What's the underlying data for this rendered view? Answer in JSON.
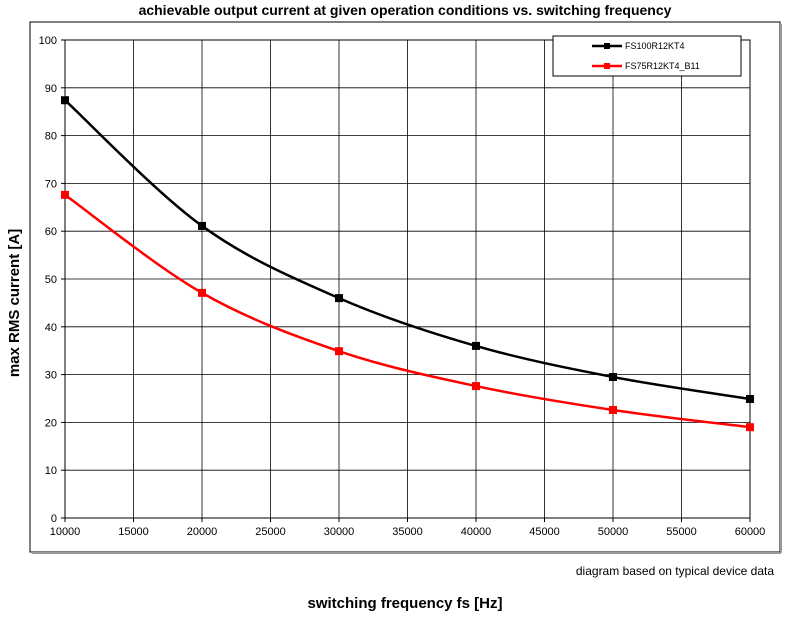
{
  "chart_data": {
    "type": "line",
    "title": "achievable output current at given operation conditions vs. switching frequency",
    "xlabel": "switching frequency fs [Hz]",
    "ylabel": "max RMS current [A]",
    "note": "diagram based on typical device data",
    "xlim": [
      10000,
      60000
    ],
    "ylim": [
      0,
      100
    ],
    "xticks": [
      10000,
      15000,
      20000,
      25000,
      30000,
      35000,
      40000,
      45000,
      50000,
      55000,
      60000
    ],
    "yticks": [
      0,
      10,
      20,
      30,
      40,
      50,
      60,
      70,
      80,
      90,
      100
    ],
    "grid": true,
    "legend_position": "top-right",
    "x": [
      10000,
      20000,
      30000,
      40000,
      50000,
      60000
    ],
    "series": [
      {
        "name": "FS100R12KT4",
        "color": "#000000",
        "values": [
          87.4,
          61.1,
          46.0,
          36.0,
          29.5,
          24.9
        ]
      },
      {
        "name": "FS75R12KT4_B11",
        "color": "#ff0000",
        "values": [
          67.6,
          47.1,
          34.9,
          27.6,
          22.6,
          19.0
        ]
      }
    ]
  }
}
